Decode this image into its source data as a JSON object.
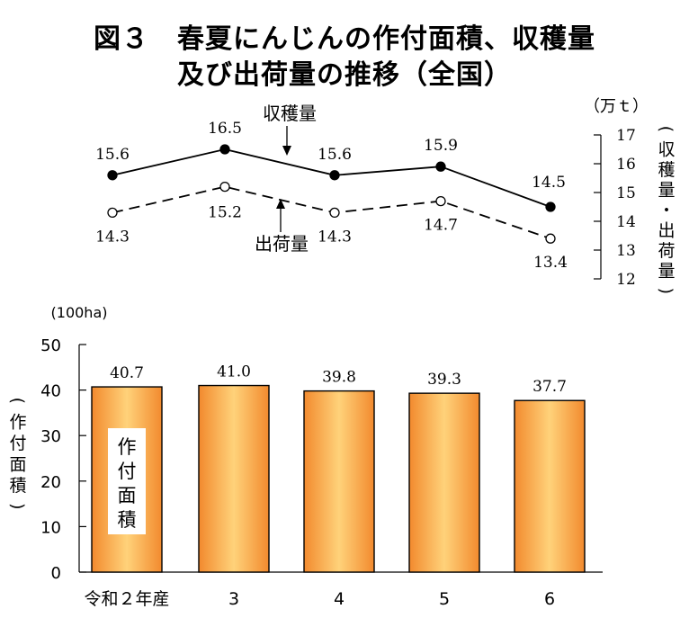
{
  "title_line1": "図３　春夏にんじんの作付面積、収穫量",
  "title_line2": "及び出荷量の推移（全国）",
  "chart_data": [
    {
      "type": "line",
      "unit": "（万ｔ）",
      "ylabel": "（収穫量・出荷量）",
      "yticks": [
        12,
        13,
        14,
        15,
        16,
        17
      ],
      "ylim": [
        12,
        17
      ],
      "categories": [
        "令和２年産",
        "3",
        "4",
        "5",
        "6"
      ],
      "series": [
        {
          "name": "収穫量",
          "values": [
            15.6,
            16.5,
            15.6,
            15.9,
            14.5
          ],
          "style": "solid",
          "marker": "filled"
        },
        {
          "name": "出荷量",
          "values": [
            14.3,
            15.2,
            14.3,
            14.7,
            13.4
          ],
          "style": "dashed",
          "marker": "open"
        }
      ],
      "annotations": [
        "収穫量",
        "出荷量"
      ]
    },
    {
      "type": "bar",
      "unit": "(100ha)",
      "ylabel": "（作付面積）",
      "yticks": [
        0,
        10,
        20,
        30,
        40,
        50
      ],
      "ylim": [
        0,
        50
      ],
      "categories": [
        "令和２年産",
        "3",
        "4",
        "5",
        "6"
      ],
      "values": [
        40.7,
        41.0,
        39.8,
        39.3,
        37.7
      ],
      "value_labels": [
        "40.7",
        "41.0",
        "39.8",
        "39.3",
        "37.7"
      ],
      "bar_label": "作付面積",
      "colors": {
        "bar_edge": "#f28a2e",
        "bar_center": "#ffd27a",
        "bar_stroke": "#000000"
      }
    }
  ]
}
